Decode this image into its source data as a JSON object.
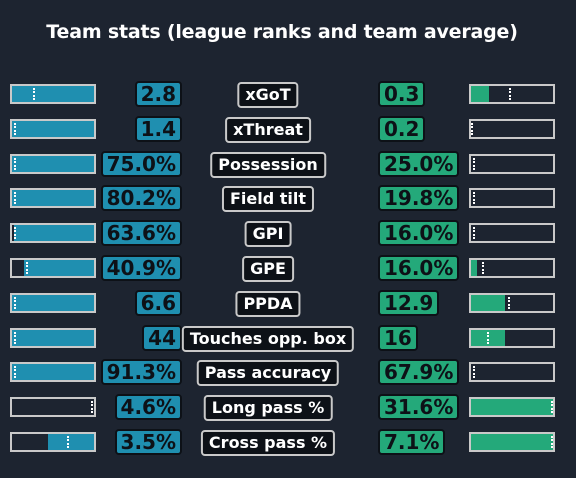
{
  "title": "Team stats (league ranks and team average)",
  "colors": {
    "background": "#1d2430",
    "left_team": "#1f8fb0",
    "right_team": "#24a97a",
    "label_bg": "#0d1117",
    "border": "#c9c9c9"
  },
  "chart_data": {
    "type": "table",
    "title": "Team stats (league ranks and team average)",
    "rows": [
      {
        "label": "xGoT",
        "left_value": "2.8",
        "right_value": "0.3",
        "left_bar_fraction": 1.0,
        "right_bar_fraction": 0.22,
        "left_avg_fraction": 0.74,
        "right_avg_fraction": 0.46
      },
      {
        "label": "xThreat",
        "left_value": "1.4",
        "right_value": "0.2",
        "left_bar_fraction": 1.0,
        "right_bar_fraction": 0.0,
        "left_avg_fraction": 0.97,
        "right_avg_fraction": 0.0
      },
      {
        "label": "Possession",
        "left_value": "75.0%",
        "right_value": "25.0%",
        "left_bar_fraction": 1.0,
        "right_bar_fraction": 0.0,
        "left_avg_fraction": 0.97,
        "right_avg_fraction": 0.02
      },
      {
        "label": "Field tilt",
        "left_value": "80.2%",
        "right_value": "19.8%",
        "left_bar_fraction": 1.0,
        "right_bar_fraction": 0.0,
        "left_avg_fraction": 0.97,
        "right_avg_fraction": 0.02
      },
      {
        "label": "GPI",
        "left_value": "63.6%",
        "right_value": "16.0%",
        "left_bar_fraction": 0.98,
        "right_bar_fraction": 0.0,
        "left_avg_fraction": 0.97,
        "right_avg_fraction": 0.02
      },
      {
        "label": "GPE",
        "left_value": "40.9%",
        "right_value": "16.0%",
        "left_bar_fraction": 0.85,
        "right_bar_fraction": 0.07,
        "left_avg_fraction": 0.83,
        "right_avg_fraction": 0.13
      },
      {
        "label": "PPDA",
        "left_value": "6.6",
        "right_value": "12.9",
        "left_bar_fraction": 1.0,
        "right_bar_fraction": 0.42,
        "left_avg_fraction": 0.97,
        "right_avg_fraction": 0.45
      },
      {
        "label": "Touches opp. box",
        "left_value": "44",
        "right_value": "16",
        "left_bar_fraction": 1.0,
        "right_bar_fraction": 0.42,
        "left_avg_fraction": 0.97,
        "right_avg_fraction": 0.2
      },
      {
        "label": "Pass accuracy",
        "left_value": "91.3%",
        "right_value": "67.9%",
        "left_bar_fraction": 1.0,
        "right_bar_fraction": 0.0,
        "left_avg_fraction": 0.97,
        "right_avg_fraction": 0.02
      },
      {
        "label": "Long pass %",
        "left_value": "4.6%",
        "right_value": "31.6%",
        "left_bar_fraction": 0.0,
        "right_bar_fraction": 1.0,
        "left_avg_fraction": 0.04,
        "right_avg_fraction": 0.97
      },
      {
        "label": "Cross pass %",
        "left_value": "3.5%",
        "right_value": "7.1%",
        "left_bar_fraction": 0.56,
        "right_bar_fraction": 1.0,
        "left_avg_fraction": 0.33,
        "right_avg_fraction": 0.97
      }
    ]
  }
}
